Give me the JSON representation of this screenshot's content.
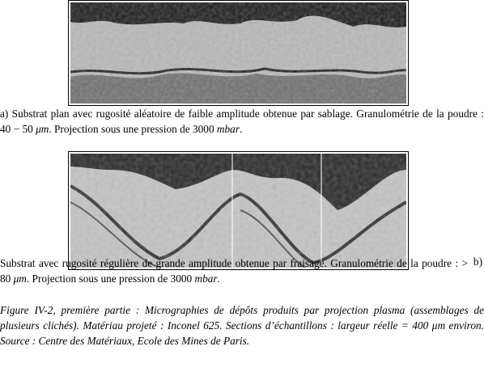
{
  "figure_a": {
    "caption": [
      "a) Substrat plan avec rugosité aléatoire de faible amplitude obtenue par sablage. Granulométrie de la poudre :  40 − 50 ",
      "μm",
      ". Projection sous une pression de 3000 ",
      "mbar",
      "."
    ]
  },
  "figure_b": {
    "label": "b)",
    "caption": [
      "Substrat avec rugosité régulière de grande amplitude obtenue par fraisage. Granulométrie de la poudre :  > 80 ",
      "μm",
      ". Projection sous une pression de 3000 ",
      "mbar",
      "."
    ]
  },
  "figure_note": "Figure IV-2, première partie :  Micrographies de dépôts produits par projection plasma (assemblages de plusieurs clichés). Matériau projeté :  Inconel 625. Sections d’échantillons :  largeur réelle = 400 μm environ. Source :  Centre des Matériaux, Ecole des Mines de Paris."
}
